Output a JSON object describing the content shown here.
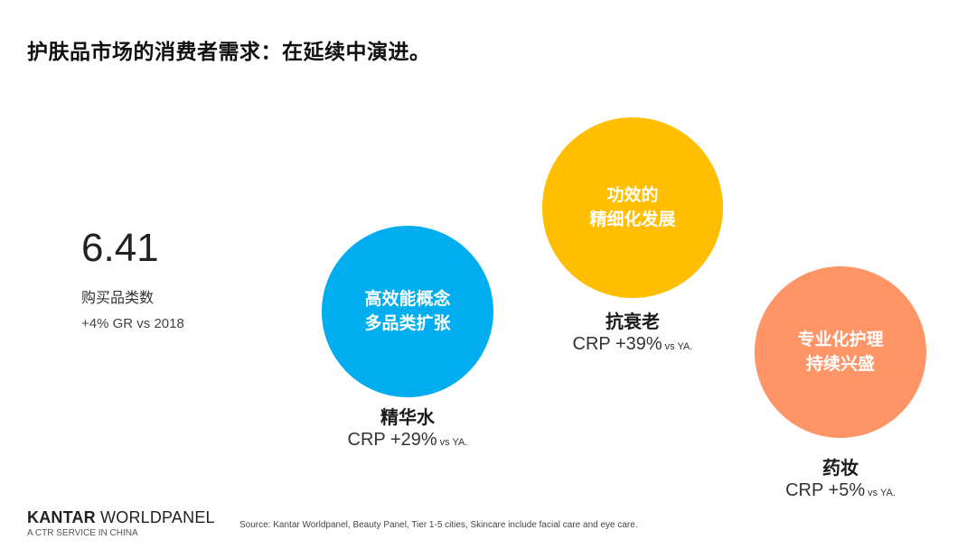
{
  "title": "护肤品市场的消费者需求：在延续中演进。",
  "stat": {
    "value": "6.41",
    "label": "购买品类数",
    "growth": "+4% GR vs 2018"
  },
  "bubbles": [
    {
      "line1": "高效能概念",
      "line2": "多品类扩张",
      "color": "#00AEEF"
    },
    {
      "line1": "功效的",
      "line2": "精细化发展",
      "color": "#FFBE00"
    },
    {
      "line1": "专业化护理",
      "line2": "持续兴盛",
      "color": "#FF9466"
    }
  ],
  "captions": [
    {
      "name": "精华水",
      "metric": "CRP +29%",
      "suffix": "vs YA."
    },
    {
      "name": "抗衰老",
      "metric": "CRP +39%",
      "suffix": "vs YA."
    },
    {
      "name": "药妆",
      "metric": "CRP +5%",
      "suffix": "vs YA."
    }
  ],
  "brand": {
    "name_bold": "KANTAR",
    "name_rest": " WORLDPANEL",
    "sub": "A CTR SERVICE IN CHINA"
  },
  "source": "Source: Kantar Worldpanel, Beauty Panel, Tier 1-5 cities, Skincare include facial care and eye care."
}
